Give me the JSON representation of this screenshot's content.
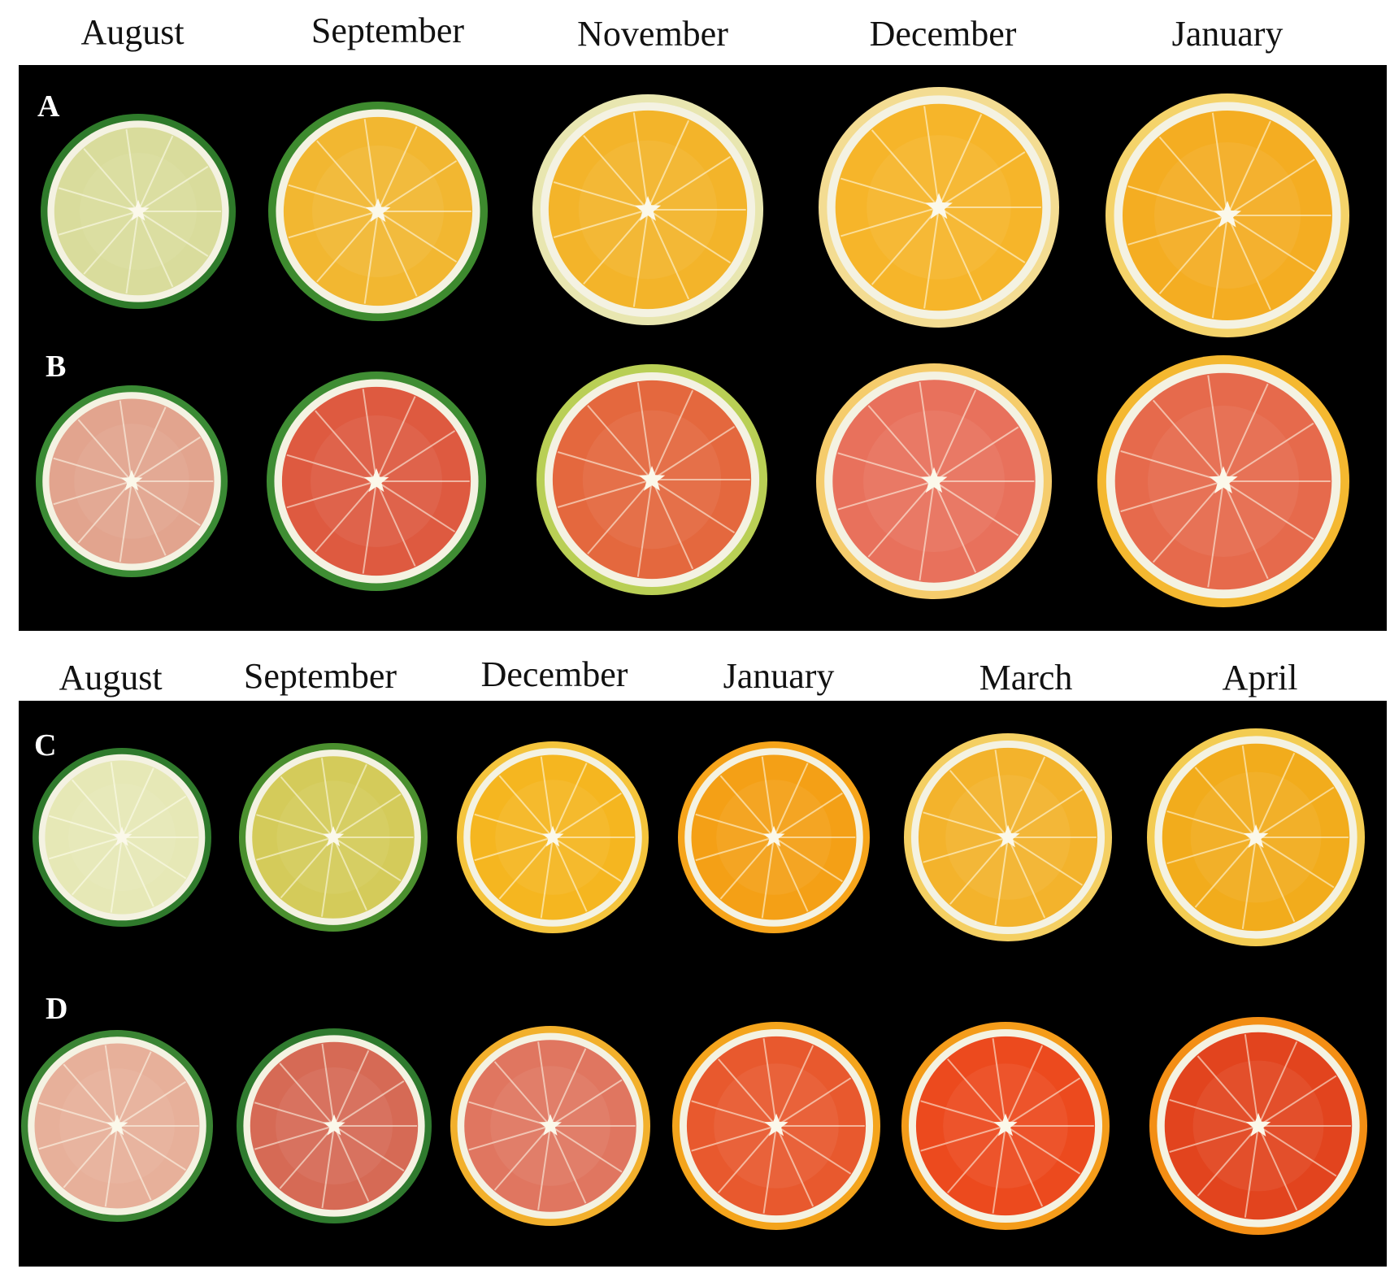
{
  "top_section": {
    "months": [
      "August",
      "September",
      "November",
      "December",
      "January"
    ],
    "rows": [
      {
        "label": "A",
        "flesh": [
          "#d9dc9c",
          "#f2b731",
          "#f3b42a",
          "#f6b52a",
          "#f4ad22"
        ],
        "rind": [
          "#2e7a2a",
          "#3d8a2e",
          "#e8e6b0",
          "#f3dc92",
          "#f4d36a"
        ]
      },
      {
        "label": "B",
        "flesh": [
          "#e2a48e",
          "#de5a40",
          "#e4683e",
          "#e8715c",
          "#e66a4c"
        ],
        "rind": [
          "#3a8a34",
          "#3f8d33",
          "#b9cf55",
          "#f5cc6c",
          "#f4b830"
        ]
      }
    ]
  },
  "bottom_section": {
    "months": [
      "August",
      "September",
      "December",
      "January",
      "March",
      "April"
    ],
    "rows": [
      {
        "label": "C",
        "flesh": [
          "#e6e8b6",
          "#d4cb5a",
          "#f5b620",
          "#f4a016",
          "#f3b32c",
          "#f2ac1c"
        ],
        "rind": [
          "#2f7a2c",
          "#4a8f2e",
          "#f4c43c",
          "#f6a41a",
          "#f4cf62",
          "#f3cc52"
        ]
      },
      {
        "label": "D",
        "flesh": [
          "#e7b09a",
          "#d66a55",
          "#e07660",
          "#e8592e",
          "#ec4a1e",
          "#e2441e"
        ],
        "rind": [
          "#3a8433",
          "#2f7a2e",
          "#f2b02c",
          "#f4a41c",
          "#f49c1a",
          "#f38e14"
        ]
      }
    ]
  }
}
